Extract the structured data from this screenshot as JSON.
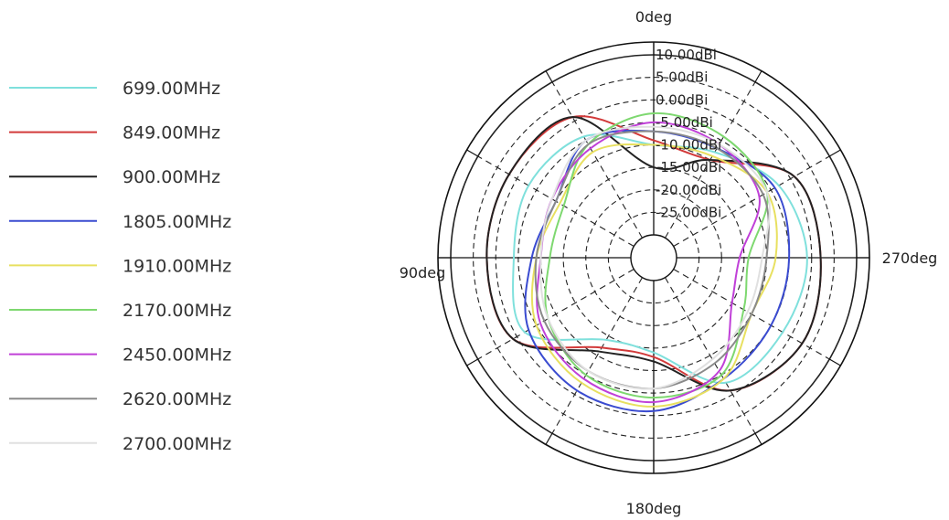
{
  "chart_data": {
    "type": "polar-line",
    "radial_unit": "dBi",
    "radial_range": [
      -30,
      10
    ],
    "ring_labels": [
      "10.00dBi",
      "5.00dBi",
      "0.00dBi",
      "-5.00dBi",
      "-10.00dBi",
      "-15.00dBi",
      "-20.00dBi",
      "-25.00dBi"
    ],
    "ring_values": [
      10,
      5,
      0,
      -5,
      -10,
      -15,
      -20,
      -25
    ],
    "angle_labels": [
      {
        "text": "0deg",
        "angle": 0
      },
      {
        "text": "90deg",
        "angle": 90
      },
      {
        "text": "180deg",
        "angle": 180
      },
      {
        "text": "270deg",
        "angle": 270
      }
    ],
    "angle_direction": "counterclockwise-from-top",
    "grid": true,
    "legend_position": "left",
    "angles": [
      0,
      30,
      60,
      90,
      120,
      150,
      180,
      210,
      240,
      270,
      300,
      330
    ],
    "series": [
      {
        "name": "699.00MHz",
        "color": "#7fe0dc",
        "values": [
          -10,
          -4,
          -3,
          -4,
          -2,
          -14,
          -14,
          -3,
          -2,
          -1,
          -3,
          -8
        ]
      },
      {
        "name": "849.00MHz",
        "color": "#d23a3a",
        "values": [
          -9,
          1,
          2,
          2,
          1,
          -12,
          -13,
          -1,
          3,
          2,
          1,
          -10
        ]
      },
      {
        "name": "900.00MHz",
        "color": "#222222",
        "values": [
          -15,
          1,
          2,
          2,
          1,
          -11,
          -12,
          -1,
          3,
          2,
          1,
          -10
        ]
      },
      {
        "name": "1805.00MHz",
        "color": "#3a4bd0",
        "values": [
          -7,
          -5,
          -10,
          -8,
          -3,
          -1,
          -1,
          -4,
          -5,
          -5,
          -4,
          -7
        ]
      },
      {
        "name": "1910.00MHz",
        "color": "#e8e060",
        "values": [
          -10,
          -8,
          -11,
          -9,
          -5,
          -3,
          -2,
          -4,
          -10,
          -8,
          -6,
          -9
        ]
      },
      {
        "name": "2170.00MHz",
        "color": "#7ed870",
        "values": [
          -3,
          -6,
          -12,
          -12,
          -8,
          -5,
          -4,
          -5,
          -12,
          -14,
          -6,
          -4
        ]
      },
      {
        "name": "2450.00MHz",
        "color": "#c040d8",
        "values": [
          -5,
          -7,
          -9,
          -10,
          -6,
          -4,
          -3,
          -6,
          -15,
          -16,
          -8,
          -6
        ]
      },
      {
        "name": "2620.00MHz",
        "color": "#8a8a8a",
        "values": [
          -7,
          -6,
          -10,
          -9,
          -7,
          -6,
          -6,
          -8,
          -10,
          -10,
          -7,
          -7
        ]
      },
      {
        "name": "2700.00MHz",
        "color": "#e0e0e0",
        "values": [
          -6,
          -5,
          -9,
          -10,
          -8,
          -6,
          -6,
          -9,
          -11,
          -11,
          -6,
          -6
        ]
      }
    ]
  }
}
